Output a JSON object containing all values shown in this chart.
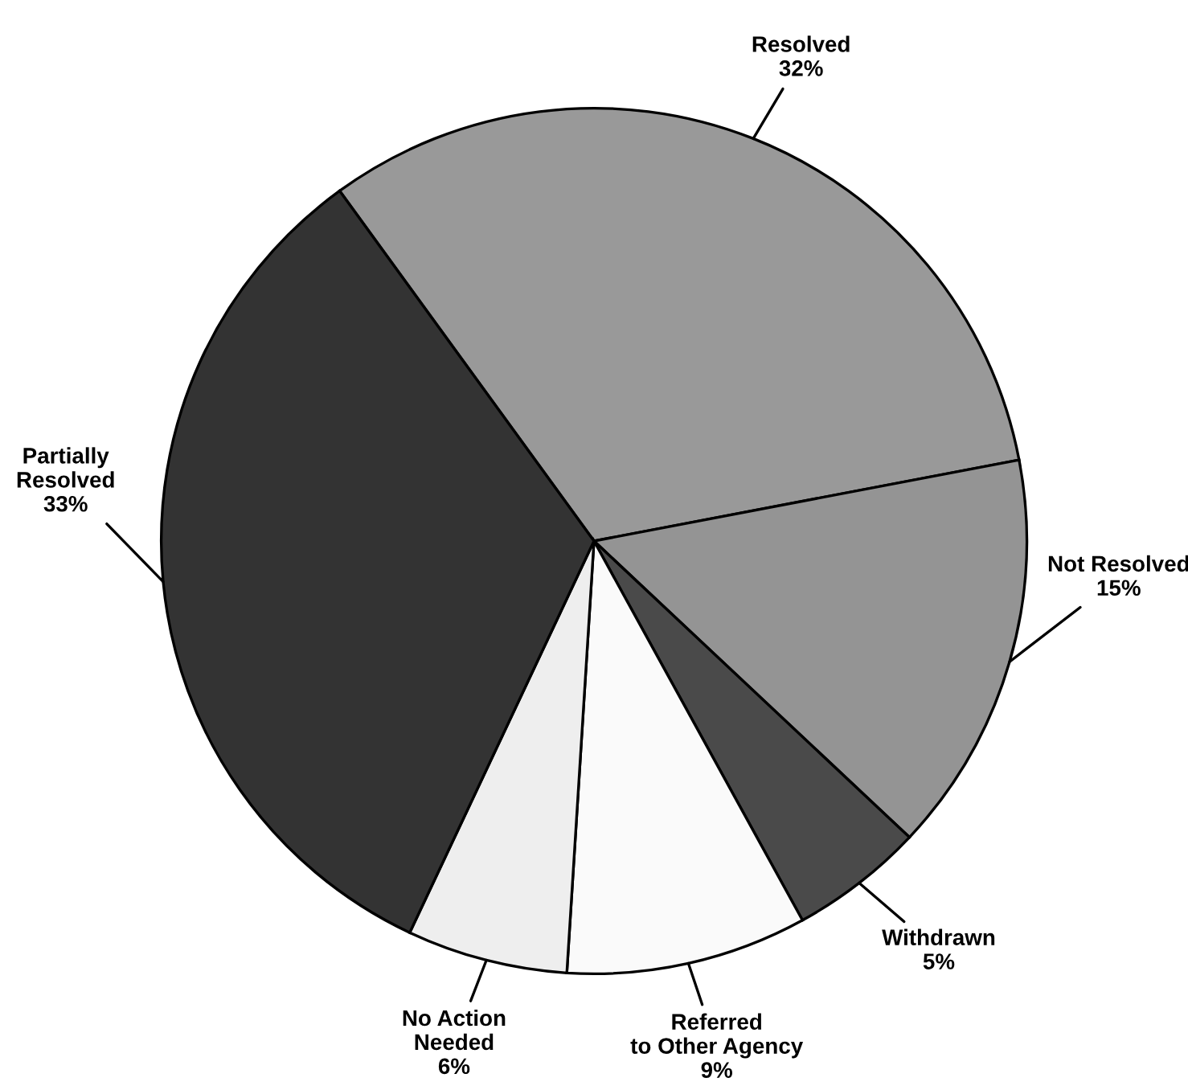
{
  "chart_data": {
    "type": "pie",
    "categories": [
      "Resolved",
      "Not Resolved",
      "Withdrawn",
      "Referred\nto Other Agency",
      "No Action\nNeeded",
      "Partially\nResolved"
    ],
    "values": [
      32,
      15,
      5,
      9,
      6,
      33
    ],
    "value_labels": [
      "32%",
      "15%",
      "5%",
      "9%",
      "6%",
      "33%"
    ],
    "colors": [
      "#999999",
      "#949494",
      "#4a4a4a",
      "#fafafa",
      "#eeeeee",
      "#333333"
    ],
    "legend": false
  }
}
